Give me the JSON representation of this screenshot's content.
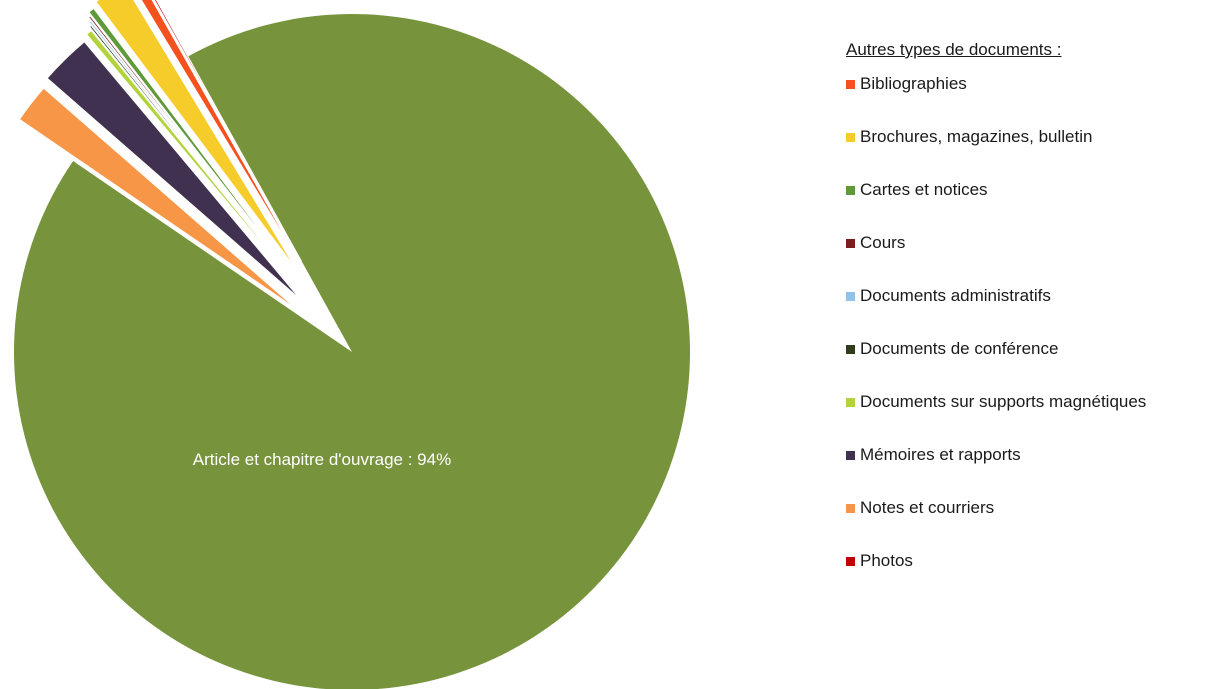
{
  "chart_data": {
    "type": "pie",
    "slices": [
      {
        "label": "Article et chapitre d'ouvrage",
        "value": 94,
        "color": "#77933c",
        "data_label": "Article et chapitre d'ouvrage : 94%"
      },
      {
        "label": "Notes et courriers",
        "value": 1.9,
        "color": "#f79646"
      },
      {
        "label": "Mémoires et rapports",
        "value": 2.5,
        "color": "#403151"
      },
      {
        "label": "Documents sur supports magnétiques",
        "value": 0.3,
        "color": "#b3d33c"
      },
      {
        "label": "Documents de conférence",
        "value": 0.1,
        "color": "#2f3d1a"
      },
      {
        "label": "Documents administratifs",
        "value": 0.1,
        "color": "#8fc3ea"
      },
      {
        "label": "Cours",
        "value": 0.1,
        "color": "#7f1d1d"
      },
      {
        "label": "Cartes et notices",
        "value": 0.3,
        "color": "#5f9a3a"
      },
      {
        "label": "Brochures, magazines, bulletin",
        "value": 1.6,
        "color": "#f6cc2b"
      },
      {
        "label": "Bibliographies",
        "value": 0.5,
        "color": "#f4511e"
      },
      {
        "label": "Photos",
        "value": 0.1,
        "color": "#c00000"
      }
    ]
  },
  "legend": {
    "title": "Autres types de documents :",
    "items": [
      {
        "label": "Bibliographies",
        "color": "#f4511e"
      },
      {
        "label": "Brochures, magazines, bulletin",
        "color": "#f6cc2b"
      },
      {
        "label": "Cartes et notices",
        "color": "#5f9a3a"
      },
      {
        "label": "Cours",
        "color": "#7f1d1d"
      },
      {
        "label": "Documents administratifs",
        "color": "#8fc3ea"
      },
      {
        "label": "Documents de conférence",
        "color": "#2f3d1a"
      },
      {
        "label": "Documents sur supports magnétiques",
        "color": "#b3d33c"
      },
      {
        "label": "Mémoires et rapports",
        "color": "#403151"
      },
      {
        "label": "Notes et courriers",
        "color": "#f79646"
      },
      {
        "label": "Photos",
        "color": "#c00000"
      }
    ]
  }
}
